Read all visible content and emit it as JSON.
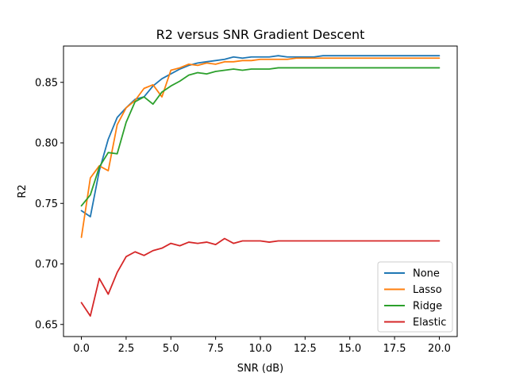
{
  "chart_data": {
    "type": "line",
    "title": "R2 versus SNR Gradient Descent",
    "xlabel": "SNR (dB)",
    "ylabel": "R2",
    "xlim": [
      -1.0,
      21.0
    ],
    "ylim": [
      0.64,
      0.88
    ],
    "xticks": [
      0.0,
      2.5,
      5.0,
      7.5,
      10.0,
      12.5,
      15.0,
      17.5,
      20.0
    ],
    "xtick_labels": [
      "0.0",
      "2.5",
      "5.0",
      "7.5",
      "10.0",
      "12.5",
      "15.0",
      "17.5",
      "20.0"
    ],
    "yticks": [
      0.65,
      0.7,
      0.75,
      0.8,
      0.85
    ],
    "ytick_labels": [
      "0.65",
      "0.70",
      "0.75",
      "0.80",
      "0.85"
    ],
    "grid": false,
    "legend_position": "lower right",
    "x": [
      0.0,
      0.5,
      1.0,
      1.5,
      2.0,
      2.5,
      3.0,
      3.5,
      4.0,
      4.5,
      5.0,
      5.5,
      6.0,
      6.5,
      7.0,
      7.5,
      8.0,
      8.5,
      9.0,
      9.5,
      10.0,
      10.5,
      11.0,
      11.5,
      12.0,
      12.5,
      13.0,
      13.5,
      14.0,
      14.5,
      15.0,
      15.5,
      16.0,
      16.5,
      17.0,
      17.5,
      18.0,
      18.5,
      19.0,
      19.5,
      20.0
    ],
    "series": [
      {
        "name": "None",
        "color": "#1f77b4",
        "values": [
          0.744,
          0.739,
          0.777,
          0.803,
          0.821,
          0.829,
          0.836,
          0.838,
          0.847,
          0.853,
          0.857,
          0.861,
          0.864,
          0.866,
          0.867,
          0.868,
          0.869,
          0.871,
          0.87,
          0.871,
          0.871,
          0.871,
          0.872,
          0.871,
          0.871,
          0.871,
          0.871,
          0.872,
          0.872,
          0.872,
          0.872,
          0.872,
          0.872,
          0.872,
          0.872,
          0.872,
          0.872,
          0.872,
          0.872,
          0.872,
          0.872
        ]
      },
      {
        "name": "Lasso",
        "color": "#ff7f0e",
        "values": [
          0.722,
          0.771,
          0.781,
          0.777,
          0.815,
          0.829,
          0.835,
          0.845,
          0.848,
          0.838,
          0.86,
          0.862,
          0.865,
          0.864,
          0.866,
          0.865,
          0.867,
          0.867,
          0.868,
          0.868,
          0.869,
          0.869,
          0.869,
          0.869,
          0.87,
          0.87,
          0.87,
          0.87,
          0.87,
          0.87,
          0.87,
          0.87,
          0.87,
          0.87,
          0.87,
          0.87,
          0.87,
          0.87,
          0.87,
          0.87,
          0.87
        ]
      },
      {
        "name": "Ridge",
        "color": "#2ca02c",
        "values": [
          0.748,
          0.757,
          0.78,
          0.792,
          0.791,
          0.817,
          0.834,
          0.838,
          0.832,
          0.842,
          0.847,
          0.851,
          0.856,
          0.858,
          0.857,
          0.859,
          0.86,
          0.861,
          0.86,
          0.861,
          0.861,
          0.861,
          0.862,
          0.862,
          0.862,
          0.862,
          0.862,
          0.862,
          0.862,
          0.862,
          0.862,
          0.862,
          0.862,
          0.862,
          0.862,
          0.862,
          0.862,
          0.862,
          0.862,
          0.862,
          0.862
        ]
      },
      {
        "name": "Elastic",
        "color": "#d62728",
        "values": [
          0.668,
          0.657,
          0.688,
          0.675,
          0.693,
          0.706,
          0.71,
          0.707,
          0.711,
          0.713,
          0.717,
          0.715,
          0.718,
          0.717,
          0.718,
          0.716,
          0.721,
          0.717,
          0.719,
          0.719,
          0.719,
          0.718,
          0.719,
          0.719,
          0.719,
          0.719,
          0.719,
          0.719,
          0.719,
          0.719,
          0.719,
          0.719,
          0.719,
          0.719,
          0.719,
          0.719,
          0.719,
          0.719,
          0.719,
          0.719,
          0.719
        ]
      }
    ]
  }
}
